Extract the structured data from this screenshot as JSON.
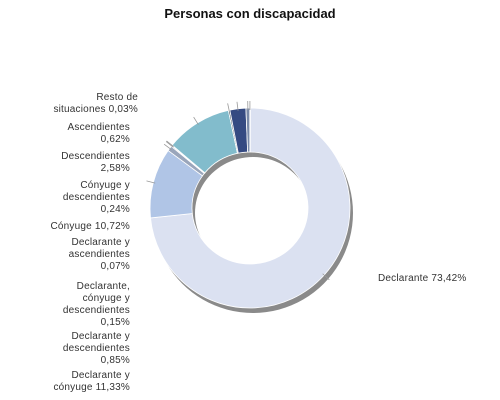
{
  "chart_data": {
    "type": "pie",
    "title": "Personas con discapacidad",
    "donut": true,
    "slices": [
      {
        "label_lines": [
          "Declarante 73,42%"
        ],
        "value": 73.42,
        "color": "#dbe1f1"
      },
      {
        "label_lines": [
          "Declarante y",
          "cónyuge 11,33%"
        ],
        "value": 11.33,
        "color": "#b0c5e6"
      },
      {
        "label_lines": [
          "Declarante y",
          "descendientes",
          "0,85%"
        ],
        "value": 0.85,
        "color": "#9aa6bb"
      },
      {
        "label_lines": [
          "Declarante,",
          "cónyuge y",
          "descendientes",
          "0,15%"
        ],
        "value": 0.15,
        "color": "#3b4a6b"
      },
      {
        "label_lines": [
          "Declarante y",
          "ascendientes",
          "0,07%"
        ],
        "value": 0.07,
        "color": "#5a6f8c"
      },
      {
        "label_lines": [
          "Cónyuge 10,72%"
        ],
        "value": 10.72,
        "color": "#82bccc"
      },
      {
        "label_lines": [
          "Cónyuge y",
          "descendientes",
          "0,24%"
        ],
        "value": 0.24,
        "color": "#4a5563"
      },
      {
        "label_lines": [
          "Descendientes",
          "2,58%"
        ],
        "value": 2.58,
        "color": "#354a82"
      },
      {
        "label_lines": [
          "Ascendientes",
          "0,62%"
        ],
        "value": 0.62,
        "color": "#7a8aa8"
      },
      {
        "label_lines": [
          "Resto de",
          "situaciones 0,03%"
        ],
        "value": 0.03,
        "color": "#c4cbd8"
      }
    ]
  }
}
